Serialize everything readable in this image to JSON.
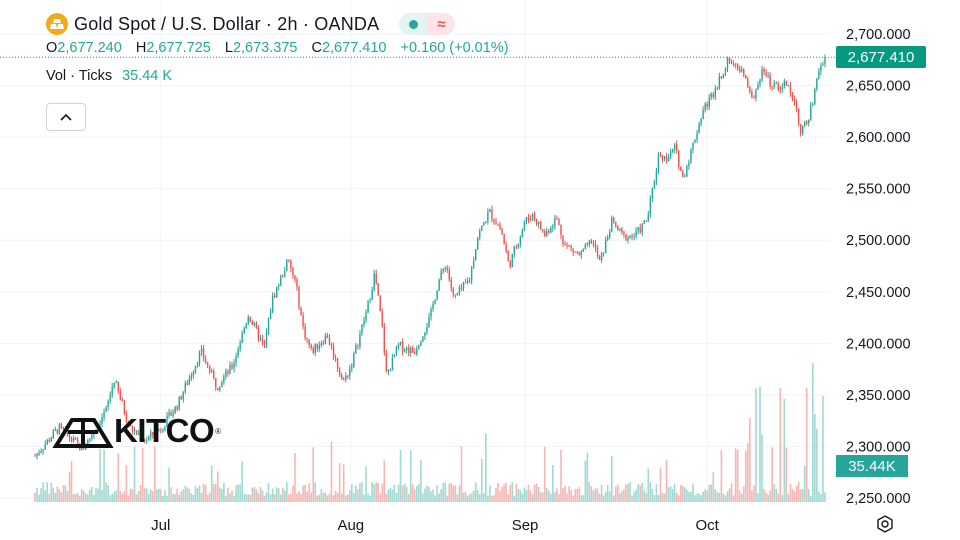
{
  "header": {
    "title": "Gold Spot / U.S. Dollar · 2h · OANDA",
    "open_label": "O",
    "open": "2,677.240",
    "high_label": "H",
    "high": "2,677.725",
    "low_label": "L",
    "low": "2,673.375",
    "close_label": "C",
    "close": "2,677.410",
    "change": "+0.160 (+0.01%)"
  },
  "volume_indicator": {
    "label": "Vol · Ticks",
    "value": "35.44 K"
  },
  "current_price_tag": "2,677.410",
  "volume_tag": "35.44K",
  "logo": {
    "text": "KITCO",
    "mark": "®"
  },
  "colors": {
    "up": "#26a69a",
    "down": "#ef5350",
    "price_tag": "#089981",
    "grid": "#f0f3fa",
    "accent_gold": "#f2a91a"
  },
  "chart_data": {
    "type": "candlestick",
    "title": "Gold Spot / U.S. Dollar · 2h · OANDA",
    "y_ticks": [
      "2,700.000",
      "2,650.000",
      "2,600.000",
      "2,550.000",
      "2,500.000",
      "2,450.000",
      "2,400.000",
      "2,350.000",
      "2,300.000",
      "2,250.000"
    ],
    "y_tick_values": [
      2700,
      2650,
      2600,
      2550,
      2500,
      2450,
      2400,
      2350,
      2300,
      2250
    ],
    "ylim": [
      2250,
      2700
    ],
    "x_ticks": [
      "Jul",
      "Aug",
      "Sep",
      "Oct"
    ],
    "x_tick_positions": [
      0.16,
      0.4,
      0.62,
      0.85
    ],
    "last_price": 2677.41,
    "volume_last": "35.44K",
    "price_path": [
      [
        0.0,
        2291
      ],
      [
        0.03,
        2318
      ],
      [
        0.06,
        2297
      ],
      [
        0.09,
        2335
      ],
      [
        0.1,
        2365
      ],
      [
        0.12,
        2318
      ],
      [
        0.14,
        2306
      ],
      [
        0.16,
        2318
      ],
      [
        0.18,
        2340
      ],
      [
        0.21,
        2392
      ],
      [
        0.23,
        2358
      ],
      [
        0.25,
        2378
      ],
      [
        0.27,
        2428
      ],
      [
        0.29,
        2395
      ],
      [
        0.3,
        2442
      ],
      [
        0.32,
        2480
      ],
      [
        0.33,
        2458
      ],
      [
        0.34,
        2412
      ],
      [
        0.35,
        2392
      ],
      [
        0.37,
        2408
      ],
      [
        0.39,
        2362
      ],
      [
        0.4,
        2378
      ],
      [
        0.42,
        2432
      ],
      [
        0.43,
        2468
      ],
      [
        0.44,
        2412
      ],
      [
        0.445,
        2368
      ],
      [
        0.46,
        2398
      ],
      [
        0.48,
        2392
      ],
      [
        0.5,
        2425
      ],
      [
        0.51,
        2458
      ],
      [
        0.52,
        2478
      ],
      [
        0.53,
        2443
      ],
      [
        0.55,
        2462
      ],
      [
        0.56,
        2503
      ],
      [
        0.575,
        2528
      ],
      [
        0.59,
        2510
      ],
      [
        0.6,
        2475
      ],
      [
        0.62,
        2518
      ],
      [
        0.63,
        2525
      ],
      [
        0.645,
        2505
      ],
      [
        0.66,
        2522
      ],
      [
        0.67,
        2496
      ],
      [
        0.69,
        2485
      ],
      [
        0.705,
        2500
      ],
      [
        0.715,
        2478
      ],
      [
        0.73,
        2518
      ],
      [
        0.745,
        2503
      ],
      [
        0.76,
        2505
      ],
      [
        0.775,
        2520
      ],
      [
        0.79,
        2585
      ],
      [
        0.8,
        2578
      ],
      [
        0.81,
        2590
      ],
      [
        0.82,
        2560
      ],
      [
        0.83,
        2585
      ],
      [
        0.845,
        2625
      ],
      [
        0.86,
        2645
      ],
      [
        0.875,
        2672
      ],
      [
        0.885,
        2675
      ],
      [
        0.895,
        2662
      ],
      [
        0.91,
        2638
      ],
      [
        0.92,
        2665
      ],
      [
        0.935,
        2648
      ],
      [
        0.95,
        2652
      ],
      [
        0.96,
        2640
      ],
      [
        0.97,
        2605
      ],
      [
        0.98,
        2620
      ],
      [
        0.99,
        2655
      ],
      [
        1.0,
        2677
      ]
    ]
  }
}
